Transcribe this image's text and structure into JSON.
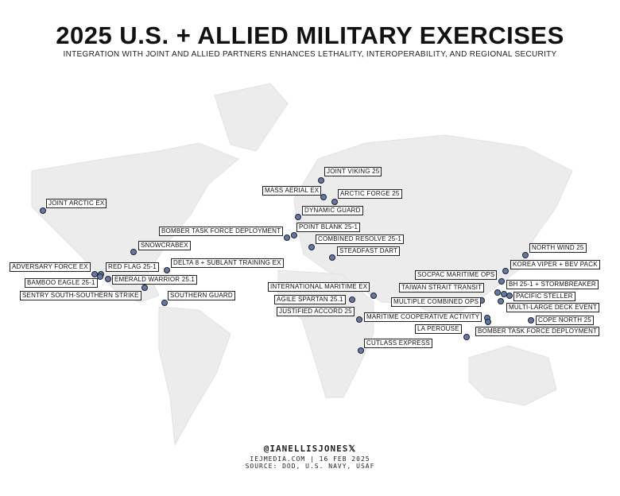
{
  "header": {
    "title": "2025 U.S. + ALLIED MILITARY EXERCISES",
    "subtitle": "INTEGRATION WITH JOINT AND ALLIED PARTNERS ENHANCES LETHALITY, INTEROPERABILITY, AND REGIONAL SECURITY"
  },
  "exercises": [
    {
      "label": "JOINT VIKING 25"
    },
    {
      "label": "MASS AERIAL EX"
    },
    {
      "label": "ARCTIC FORGE 25"
    },
    {
      "label": "DYNAMIC GUARD"
    },
    {
      "label": "POINT BLANK 25-1"
    },
    {
      "label": "BOMBER TASK FORCE DEPLOYMENT"
    },
    {
      "label": "COMBINED RESOLVE 25-1"
    },
    {
      "label": "STEADFAST DART"
    },
    {
      "label": "JOINT ARCTIC EX"
    },
    {
      "label": "SNOWCRABEX"
    },
    {
      "label": "DELTA 8 + SUBLANT TRAINING EX"
    },
    {
      "label": "ADVERSARY FORCE EX"
    },
    {
      "label": "RED FLAG 25-1"
    },
    {
      "label": "EMERALD WARRIOR 25.1"
    },
    {
      "label": "BAMBOO EAGLE 25-1"
    },
    {
      "label": "SENTRY SOUTH-SOUTHERN STRIKE"
    },
    {
      "label": "SOUTHERN GUARD"
    },
    {
      "label": "INTERNATIONAL MARITIME EX"
    },
    {
      "label": "AGILE SPARTAN 25.1"
    },
    {
      "label": "JUSTIFIED ACCORD 25"
    },
    {
      "label": "MARITIME COOPERATIVE ACTIVITY"
    },
    {
      "label": "CUTLASS EXPRESS"
    },
    {
      "label": "LA PEROUSE"
    },
    {
      "label": "NORTH WIND 25"
    },
    {
      "label": "KOREA VIPER + BEV PACK"
    },
    {
      "label": "SOCPAC MARITIME OPS"
    },
    {
      "label": "BH 25-1 + STORMBREAKER"
    },
    {
      "label": "TAIWAN STRAIT TRANSIT"
    },
    {
      "label": "PACIFIC STELLER"
    },
    {
      "label": "MULTIPLE COMBINED OPS"
    },
    {
      "label": "MULTI-LARGE DECK EVENT"
    },
    {
      "label": "COPE NORTH 25"
    },
    {
      "label": "BOMBER TASK FORCE DEPLOYMENT"
    }
  ],
  "footer": {
    "handle": "@IANELLISJONES𝕏",
    "site": "IEJMEDIA.COM | 16 FEB 2025",
    "source": "SOURCE: DOD, U.S. NAVY, USAF"
  }
}
